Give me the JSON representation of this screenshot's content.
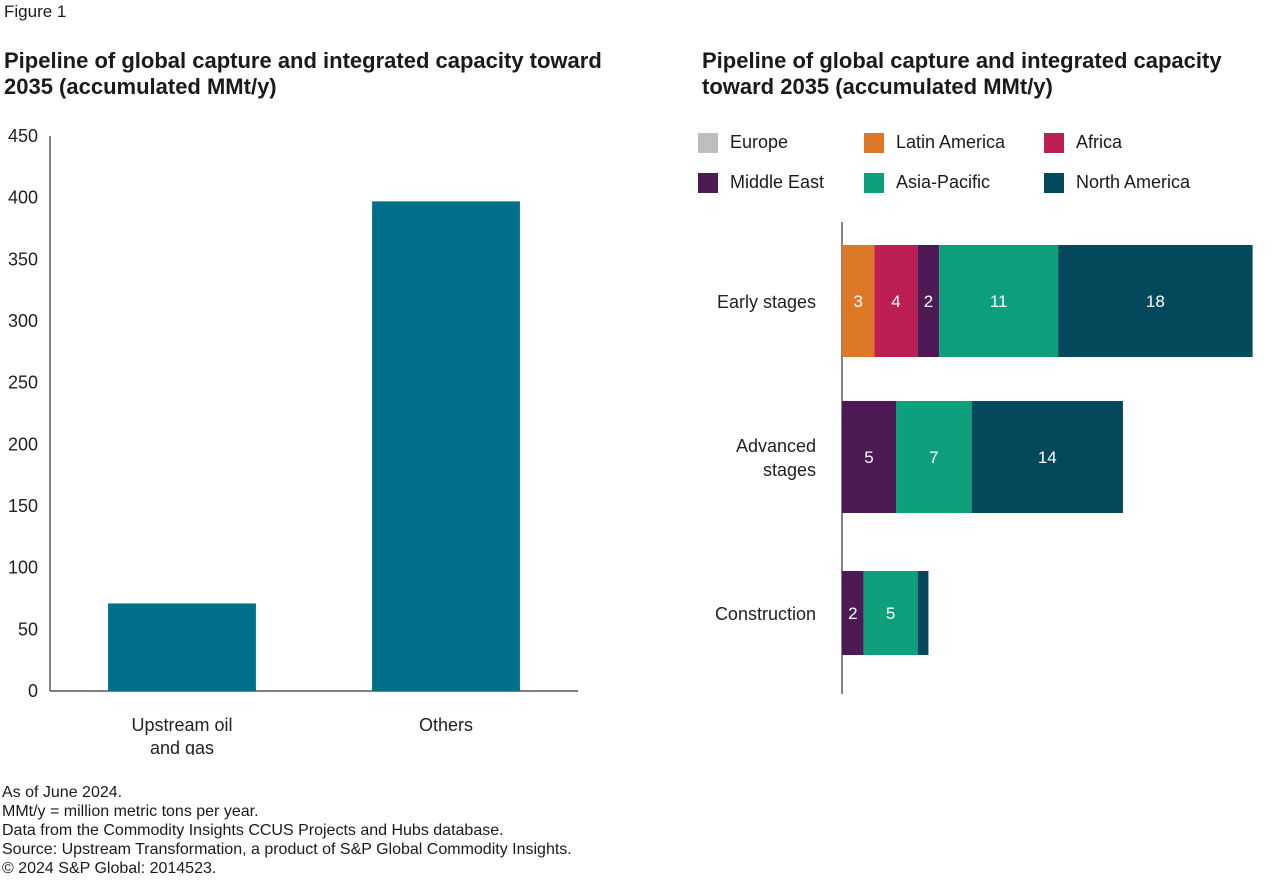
{
  "figure_label": "Figure 1",
  "chart_data": [
    {
      "type": "bar",
      "title": "Pipeline of global capture and integrated capacity toward 2035 (accumulated MMt/y)",
      "categories": [
        "Upstream oil and gas",
        "Others"
      ],
      "category_lines": [
        [
          "Upstream oil",
          "and gas"
        ],
        [
          "Others"
        ]
      ],
      "values": [
        71,
        397
      ],
      "ylim": [
        0,
        450
      ],
      "yticks": [
        0,
        50,
        100,
        150,
        200,
        250,
        300,
        350,
        400,
        450
      ],
      "xlabel": "",
      "ylabel": "",
      "grid": false,
      "color": "#006f8a"
    },
    {
      "type": "bar",
      "orientation": "horizontal",
      "stacked": true,
      "title": "Pipeline of global capture and integrated capacity toward 2035 (accumulated MMt/y)",
      "categories": [
        "Early stages",
        "Advanced stages",
        "Construction"
      ],
      "category_lines": [
        [
          "Early stages"
        ],
        [
          "Advanced",
          "stages"
        ],
        [
          "Construction"
        ]
      ],
      "xlim": [
        0,
        38.5
      ],
      "legend_position": "top",
      "grid": false,
      "series": [
        {
          "name": "Europe",
          "color": "#bdbdbd",
          "values": [
            0,
            0,
            0
          ]
        },
        {
          "name": "Latin America",
          "color": "#dd7826",
          "values": [
            3,
            0,
            0
          ]
        },
        {
          "name": "Africa",
          "color": "#bb1f53",
          "values": [
            4,
            0,
            0
          ]
        },
        {
          "name": "Middle East",
          "color": "#4d1a55",
          "values": [
            2,
            5,
            2
          ]
        },
        {
          "name": "Asia-Pacific",
          "color": "#0ea07c",
          "values": [
            11,
            7,
            5
          ]
        },
        {
          "name": "North America",
          "color": "#03495b",
          "values": [
            18,
            14,
            1
          ]
        }
      ],
      "data_labels": [
        [
          "",
          "3",
          "4",
          "2",
          "11",
          "18"
        ],
        [
          "",
          "",
          "",
          "5",
          "7",
          "14"
        ],
        [
          "",
          "",
          "",
          "2",
          "5",
          ""
        ]
      ]
    }
  ],
  "notes": [
    "As of June 2024.",
    "MMt/y = million metric tons per year.",
    "Data from the Commodity Insights CCUS Projects and Hubs database.",
    "Source: Upstream Transformation, a product of S&P Global Commodity Insights.",
    "© 2024 S&P Global: 2014523."
  ]
}
